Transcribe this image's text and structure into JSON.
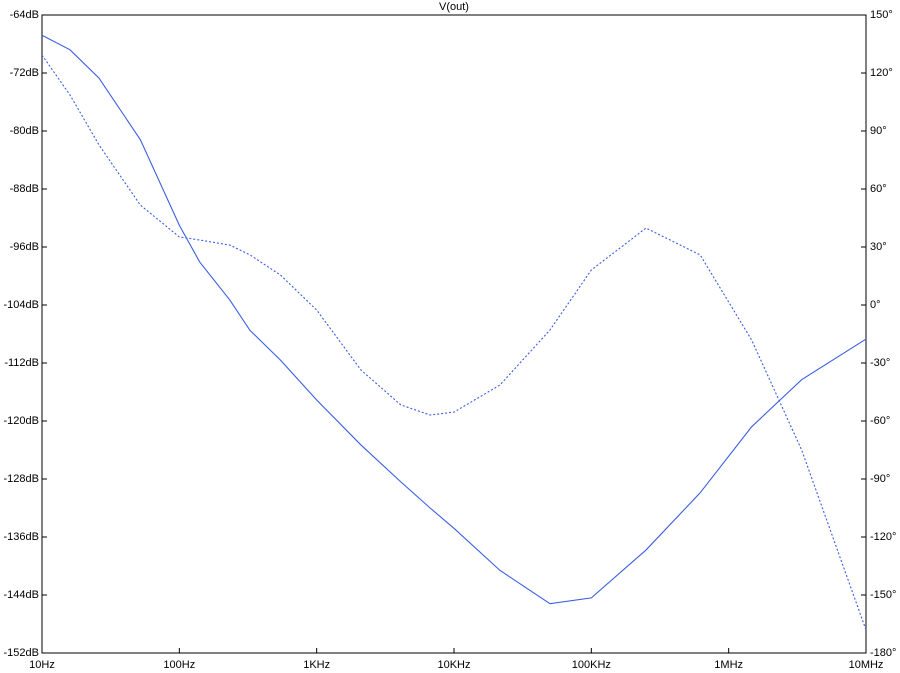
{
  "chart_data": {
    "type": "line",
    "title": "V(out)",
    "title_color": "#0000ff",
    "xscale": "log",
    "xlim": [
      10,
      10000000
    ],
    "xticks": [
      {
        "value": 10,
        "label": "10Hz"
      },
      {
        "value": 100,
        "label": "100Hz"
      },
      {
        "value": 1000,
        "label": "1KHz"
      },
      {
        "value": 10000,
        "label": "10KHz"
      },
      {
        "value": 100000,
        "label": "100KHz"
      },
      {
        "value": 1000000,
        "label": "1MHz"
      },
      {
        "value": 10000000,
        "label": "10MHz"
      }
    ],
    "ylim": [
      -152,
      -64
    ],
    "yticks": [
      {
        "value": -64,
        "label": "-64dB"
      },
      {
        "value": -72,
        "label": "-72dB"
      },
      {
        "value": -80,
        "label": "-80dB"
      },
      {
        "value": -88,
        "label": "-88dB"
      },
      {
        "value": -96,
        "label": "-96dB"
      },
      {
        "value": -104,
        "label": "-104dB"
      },
      {
        "value": -112,
        "label": "-112dB"
      },
      {
        "value": -120,
        "label": "-120dB"
      },
      {
        "value": -128,
        "label": "-128dB"
      },
      {
        "value": -136,
        "label": "-136dB"
      },
      {
        "value": -144,
        "label": "-144dB"
      },
      {
        "value": -152,
        "label": "-152dB"
      }
    ],
    "y2lim": [
      -180,
      150
    ],
    "y2ticks": [
      {
        "value": 150,
        "label": "150°"
      },
      {
        "value": 120,
        "label": "120°"
      },
      {
        "value": 90,
        "label": "90°"
      },
      {
        "value": 60,
        "label": "60°"
      },
      {
        "value": 30,
        "label": "30°"
      },
      {
        "value": 0,
        "label": "0°"
      },
      {
        "value": -30,
        "label": "-30°"
      },
      {
        "value": -60,
        "label": "-60°"
      },
      {
        "value": -90,
        "label": "-90°"
      },
      {
        "value": -120,
        "label": "-120°"
      },
      {
        "value": -150,
        "label": "-150°"
      },
      {
        "value": -180,
        "label": "-180°"
      }
    ],
    "grid": false,
    "x": [
      10,
      16,
      26,
      52,
      100,
      141,
      233,
      327,
      545,
      1000,
      2100,
      4100,
      6700,
      10000,
      21600,
      50000,
      100000,
      250000,
      620000,
      1470000,
      3400000,
      10000000
    ],
    "series": [
      {
        "color": "#3a5fe0",
        "dash": false,
        "values": [
          -66.8,
          -68.8,
          -72.7,
          -81.2,
          -93.0,
          -98.1,
          -103.3,
          -107.5,
          -111.6,
          -117.1,
          -123.3,
          -128.4,
          -132.0,
          -134.8,
          -140.6,
          -145.2,
          -144.4,
          -137.8,
          -129.9,
          -120.8,
          -114.3,
          -108.7
        ]
      },
      {
        "color": "#3a5fe0",
        "dash": true,
        "axis": "y2",
        "values": [
          129.3,
          108.6,
          82.8,
          51.7,
          35.2,
          33.6,
          31.0,
          25.9,
          15.5,
          -2.6,
          -33.6,
          -51.7,
          -56.9,
          -55.4,
          -41.4,
          -12.9,
          18.1,
          39.8,
          25.9,
          -18.1,
          -75.0,
          -168.1
        ]
      }
    ]
  }
}
